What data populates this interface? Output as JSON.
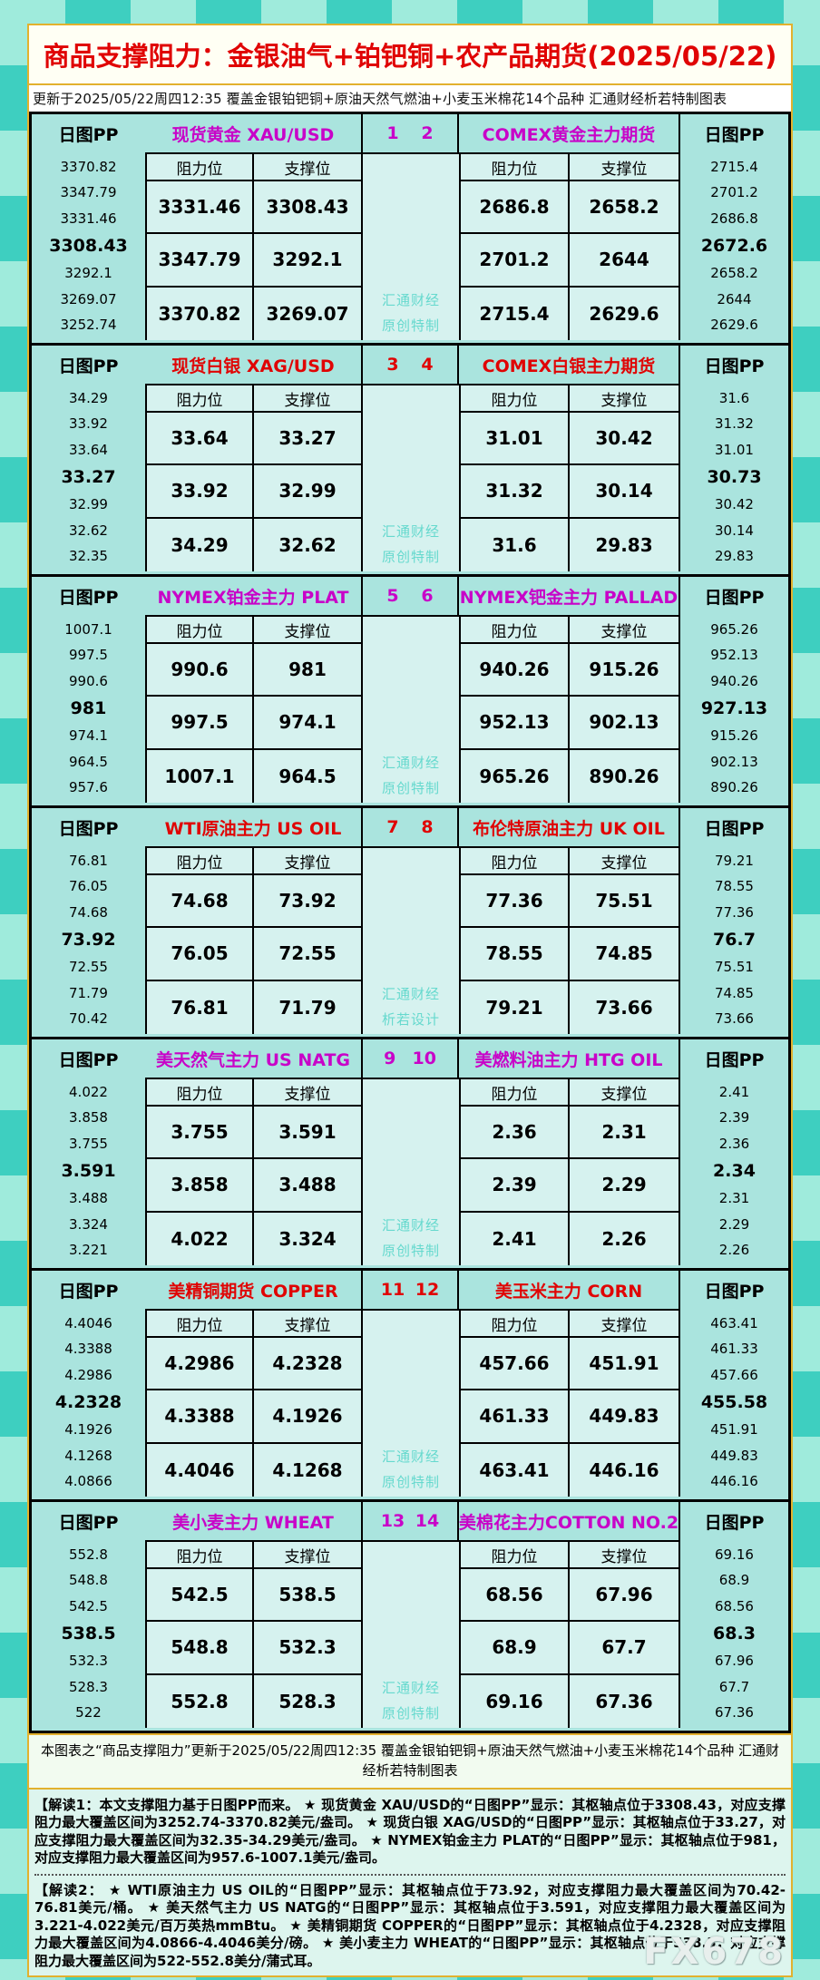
{
  "title": "商品支撑阻力：金银油气+铂钯铜+农产品期货(2025/05/22)",
  "subtitle": "更新于2025/05/22周四12:35  覆盖金银铂钯铜+原油天然气燃油+小麦玉米棉花14个品种  汇通财经析若特制图表",
  "labels": {
    "pp": "日图PP",
    "resistance": "阻力位",
    "support": "支撑位"
  },
  "colors": {
    "magenta_header": "#c803c8",
    "red_header": "#e00404",
    "teal_block_bg": "#aae4de",
    "cell_bg": "#d6f2ef",
    "watermark_text": "#66d9ce",
    "title_red": "#e00404",
    "gold_border": "#e2b12e"
  },
  "chart_data": {
    "type": "table",
    "title": "商品支撑阻力：金银油气+铂钯铜+农产品期货(2025/05/22)",
    "columns": [
      "阻力位",
      "支撑位"
    ],
    "pp_column_order": [
      "R3",
      "R2",
      "R1",
      "PP(pivot,bold)",
      "S1",
      "S2",
      "S3"
    ],
    "pairs": [
      {
        "index_left": "1",
        "index_right": "2",
        "header_color": "#c803c8",
        "watermark": [
          "汇通财经",
          "原创特制"
        ],
        "left": {
          "name": "现货黄金 XAU/USD",
          "pp_levels": [
            "3370.82",
            "3347.79",
            "3331.46",
            "3308.43",
            "3292.1",
            "3269.07",
            "3252.74"
          ],
          "pivot": "3308.43",
          "rows": [
            [
              "3331.46",
              "3308.43"
            ],
            [
              "3347.79",
              "3292.1"
            ],
            [
              "3370.82",
              "3269.07"
            ]
          ]
        },
        "right": {
          "name": "COMEX黄金主力期货",
          "pp_levels": [
            "2715.4",
            "2701.2",
            "2686.8",
            "2672.6",
            "2658.2",
            "2644",
            "2629.6"
          ],
          "pivot": "2672.6",
          "rows": [
            [
              "2686.8",
              "2658.2"
            ],
            [
              "2701.2",
              "2644"
            ],
            [
              "2715.4",
              "2629.6"
            ]
          ]
        }
      },
      {
        "index_left": "3",
        "index_right": "4",
        "header_color": "#e00404",
        "watermark": [
          "汇通财经",
          "原创特制"
        ],
        "left": {
          "name": "现货白银 XAG/USD",
          "pp_levels": [
            "34.29",
            "33.92",
            "33.64",
            "33.27",
            "32.99",
            "32.62",
            "32.35"
          ],
          "pivot": "33.27",
          "rows": [
            [
              "33.64",
              "33.27"
            ],
            [
              "33.92",
              "32.99"
            ],
            [
              "34.29",
              "32.62"
            ]
          ]
        },
        "right": {
          "name": "COMEX白银主力期货",
          "pp_levels": [
            "31.6",
            "31.32",
            "31.01",
            "30.73",
            "30.42",
            "30.14",
            "29.83"
          ],
          "pivot": "30.73",
          "rows": [
            [
              "31.01",
              "30.42"
            ],
            [
              "31.32",
              "30.14"
            ],
            [
              "31.6",
              "29.83"
            ]
          ]
        }
      },
      {
        "index_left": "5",
        "index_right": "6",
        "header_color": "#c803c8",
        "watermark": [
          "汇通财经",
          "原创特制"
        ],
        "left": {
          "name": "NYMEX铂金主力 PLAT",
          "pp_levels": [
            "1007.1",
            "997.5",
            "990.6",
            "981",
            "974.1",
            "964.5",
            "957.6"
          ],
          "pivot": "981",
          "rows": [
            [
              "990.6",
              "981"
            ],
            [
              "997.5",
              "974.1"
            ],
            [
              "1007.1",
              "964.5"
            ]
          ]
        },
        "right": {
          "name": "NYMEX钯金主力 PALLAD",
          "pp_levels": [
            "965.26",
            "952.13",
            "940.26",
            "927.13",
            "915.26",
            "902.13",
            "890.26"
          ],
          "pivot": "927.13",
          "rows": [
            [
              "940.26",
              "915.26"
            ],
            [
              "952.13",
              "902.13"
            ],
            [
              "965.26",
              "890.26"
            ]
          ]
        }
      },
      {
        "index_left": "7",
        "index_right": "8",
        "header_color": "#e00404",
        "watermark": [
          "汇通财经",
          "析若设计"
        ],
        "left": {
          "name": "WTI原油主力 US OIL",
          "pp_levels": [
            "76.81",
            "76.05",
            "74.68",
            "73.92",
            "72.55",
            "71.79",
            "70.42"
          ],
          "pivot": "73.92",
          "rows": [
            [
              "74.68",
              "73.92"
            ],
            [
              "76.05",
              "72.55"
            ],
            [
              "76.81",
              "71.79"
            ]
          ]
        },
        "right": {
          "name": "布伦特原油主力 UK OIL",
          "pp_levels": [
            "79.21",
            "78.55",
            "77.36",
            "76.7",
            "75.51",
            "74.85",
            "73.66"
          ],
          "pivot": "76.7",
          "rows": [
            [
              "77.36",
              "75.51"
            ],
            [
              "78.55",
              "74.85"
            ],
            [
              "79.21",
              "73.66"
            ]
          ]
        }
      },
      {
        "index_left": "9",
        "index_right": "10",
        "header_color": "#c803c8",
        "watermark": [
          "汇通财经",
          "原创特制"
        ],
        "left": {
          "name": "美天然气主力 US NATG",
          "pp_levels": [
            "4.022",
            "3.858",
            "3.755",
            "3.591",
            "3.488",
            "3.324",
            "3.221"
          ],
          "pivot": "3.591",
          "rows": [
            [
              "3.755",
              "3.591"
            ],
            [
              "3.858",
              "3.488"
            ],
            [
              "4.022",
              "3.324"
            ]
          ]
        },
        "right": {
          "name": "美燃料油主力 HTG OIL",
          "pp_levels": [
            "2.41",
            "2.39",
            "2.36",
            "2.34",
            "2.31",
            "2.29",
            "2.26"
          ],
          "pivot": "2.34",
          "rows": [
            [
              "2.36",
              "2.31"
            ],
            [
              "2.39",
              "2.29"
            ],
            [
              "2.41",
              "2.26"
            ]
          ]
        }
      },
      {
        "index_left": "11",
        "index_right": "12",
        "header_color": "#e00404",
        "watermark": [
          "汇通财经",
          "原创特制"
        ],
        "left": {
          "name": "美精铜期货 COPPER",
          "pp_levels": [
            "4.4046",
            "4.3388",
            "4.2986",
            "4.2328",
            "4.1926",
            "4.1268",
            "4.0866"
          ],
          "pivot": "4.2328",
          "rows": [
            [
              "4.2986",
              "4.2328"
            ],
            [
              "4.3388",
              "4.1926"
            ],
            [
              "4.4046",
              "4.1268"
            ]
          ]
        },
        "right": {
          "name": "美玉米主力 CORN",
          "pp_levels": [
            "463.41",
            "461.33",
            "457.66",
            "455.58",
            "451.91",
            "449.83",
            "446.16"
          ],
          "pivot": "455.58",
          "rows": [
            [
              "457.66",
              "451.91"
            ],
            [
              "461.33",
              "449.83"
            ],
            [
              "463.41",
              "446.16"
            ]
          ]
        }
      },
      {
        "index_left": "13",
        "index_right": "14",
        "header_color": "#c803c8",
        "watermark": [
          "汇通财经",
          "原创特制"
        ],
        "left": {
          "name": "美小麦主力 WHEAT",
          "pp_levels": [
            "552.8",
            "548.8",
            "542.5",
            "538.5",
            "532.3",
            "528.3",
            "522"
          ],
          "pivot": "538.5",
          "rows": [
            [
              "542.5",
              "538.5"
            ],
            [
              "548.8",
              "532.3"
            ],
            [
              "552.8",
              "528.3"
            ]
          ]
        },
        "right": {
          "name": "美棉花主力COTTON NO.2",
          "pp_levels": [
            "69.16",
            "68.9",
            "68.56",
            "68.3",
            "67.96",
            "67.7",
            "67.36"
          ],
          "pivot": "68.3",
          "rows": [
            [
              "68.56",
              "67.96"
            ],
            [
              "68.9",
              "67.7"
            ],
            [
              "69.16",
              "67.36"
            ]
          ]
        }
      }
    ]
  },
  "footer_summary": "本图表之“商品支撑阻力”更新于2025/05/22周四12:35  覆盖金银铂钯铜+原油天然气燃油+小麦玉米棉花14个品种  汇通财经析若特制图表",
  "notes": [
    "【解读1：本文支撑阻力基于日图PP而来。 ★ 现货黄金 XAU/USD的“日图PP”显示：其枢轴点位于3308.43，对应支撑阻力最大覆盖区间为3252.74-3370.82美元/盎司。 ★ 现货白银 XAG/USD的“日图PP”显示：其枢轴点位于33.27，对应支撑阻力最大覆盖区间为32.35-34.29美元/盎司。 ★ NYMEX铂金主力 PLAT的“日图PP”显示：其枢轴点位于981，对应支撑阻力最大覆盖区间为957.6-1007.1美元/盎司。",
    "【解读2： ★ WTI原油主力 US OIL的“日图PP”显示：其枢轴点位于73.92，对应支撑阻力最大覆盖区间为70.42-76.81美元/桶。 ★ 美天然气主力 US NATG的“日图PP”显示：其枢轴点位于3.591，对应支撑阻力最大覆盖区间为3.221-4.022美元/百万英热mmBtu。 ★ 美精铜期货 COPPER的“日图PP”显示：其枢轴点位于4.2328，对应支撑阻力最大覆盖区间为4.0866-4.4046美分/磅。 ★ 美小麦主力 WHEAT的“日图PP”显示：其枢轴点位于538.5，对应支撑阻力最大覆盖区间为522-552.8美分/蒲式耳。"
  ],
  "brand_watermark": "FX678"
}
